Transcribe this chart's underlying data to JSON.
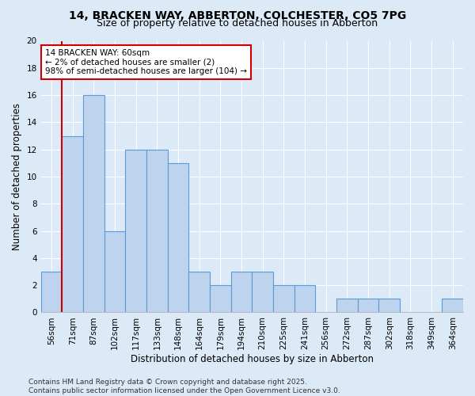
{
  "title_line1": "14, BRACKEN WAY, ABBERTON, COLCHESTER, CO5 7PG",
  "title_line2": "Size of property relative to detached houses in Abberton",
  "xlabel": "Distribution of detached houses by size in Abberton",
  "ylabel": "Number of detached properties",
  "bins": [
    "56sqm",
    "71sqm",
    "87sqm",
    "102sqm",
    "117sqm",
    "133sqm",
    "148sqm",
    "164sqm",
    "179sqm",
    "194sqm",
    "210sqm",
    "225sqm",
    "241sqm",
    "256sqm",
    "272sqm",
    "287sqm",
    "302sqm",
    "318sqm",
    "349sqm",
    "364sqm"
  ],
  "values": [
    3,
    13,
    16,
    6,
    12,
    12,
    11,
    3,
    2,
    3,
    3,
    2,
    2,
    0,
    1,
    1,
    1,
    0,
    0,
    1
  ],
  "bar_color": "#bed3ee",
  "bar_edge_color": "#5b9bd5",
  "highlight_color_edge": "#cc0000",
  "annotation_text": "14 BRACKEN WAY: 60sqm\n← 2% of detached houses are smaller (2)\n98% of semi-detached houses are larger (104) →",
  "annotation_box_edge": "#cc0000",
  "ylim": [
    0,
    20
  ],
  "yticks": [
    0,
    2,
    4,
    6,
    8,
    10,
    12,
    14,
    16,
    18,
    20
  ],
  "footer_line1": "Contains HM Land Registry data © Crown copyright and database right 2025.",
  "footer_line2": "Contains public sector information licensed under the Open Government Licence v3.0.",
  "bg_color": "#dce9f7",
  "plot_bg_color": "#dce9f7",
  "grid_color": "#ffffff",
  "title_fontsize": 10,
  "subtitle_fontsize": 9,
  "axis_label_fontsize": 8.5,
  "tick_fontsize": 7.5,
  "annotation_fontsize": 7.5,
  "footer_fontsize": 6.5
}
